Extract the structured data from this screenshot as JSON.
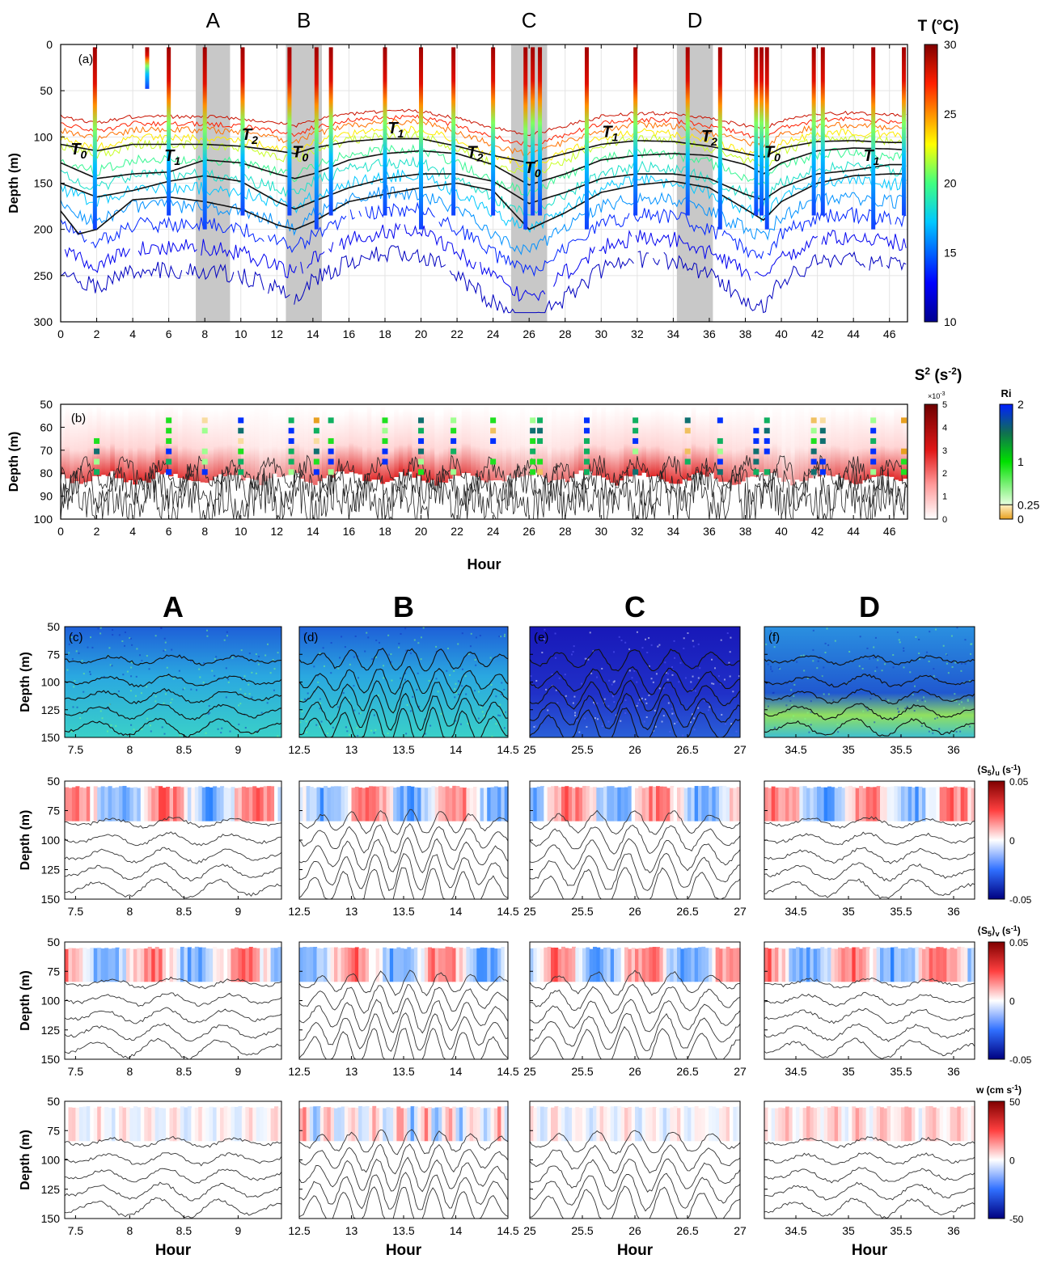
{
  "chart_data": [
    {
      "panel": "(a)",
      "type": "heatmap",
      "xlabel": "",
      "ylabel": "Depth (m)",
      "xlim": [
        0,
        47
      ],
      "ylim": [
        300,
        0
      ],
      "x_ticks": [
        "0",
        "2",
        "4",
        "6",
        "8",
        "10",
        "12",
        "14",
        "16",
        "18",
        "20",
        "22",
        "24",
        "26",
        "28",
        "30",
        "32",
        "34",
        "36",
        "38",
        "40",
        "42",
        "44",
        "46"
      ],
      "y_ticks": [
        "0",
        "50",
        "100",
        "150",
        "200",
        "250",
        "300"
      ],
      "colorbar": {
        "label": "T (°C)",
        "min": 10,
        "max": 30,
        "ticks": [
          "30",
          "25",
          "20",
          "15",
          "10"
        ],
        "colormap": "jet"
      },
      "shaded_windows": [
        {
          "label": "A",
          "x0": 7.5,
          "x1": 9.4
        },
        {
          "label": "B",
          "x0": 12.5,
          "x1": 14.5
        },
        {
          "label": "C",
          "x0": 25.0,
          "x1": 27.0
        },
        {
          "label": "D",
          "x0": 34.2,
          "x1": 36.2
        }
      ],
      "phase_labels": [
        {
          "text": "T",
          "sub": "0",
          "x": 1.0,
          "y": 119
        },
        {
          "text": "T",
          "sub": "1",
          "x": 6.2,
          "y": 126
        },
        {
          "text": "T",
          "sub": "2",
          "x": 10.5,
          "y": 103
        },
        {
          "text": "T",
          "sub": "0",
          "x": 13.3,
          "y": 122
        },
        {
          "text": "T",
          "sub": "1",
          "x": 18.6,
          "y": 96
        },
        {
          "text": "T",
          "sub": "2",
          "x": 23.0,
          "y": 122
        },
        {
          "text": "T",
          "sub": "0",
          "x": 26.2,
          "y": 139
        },
        {
          "text": "T",
          "sub": "1",
          "x": 30.5,
          "y": 100
        },
        {
          "text": "T",
          "sub": "2",
          "x": 36.0,
          "y": 105
        },
        {
          "text": "T",
          "sub": "0",
          "x": 39.5,
          "y": 122
        },
        {
          "text": "T",
          "sub": "1",
          "x": 45.0,
          "y": 126
        }
      ],
      "cast_times": [
        1.9,
        4.8,
        6.0,
        8.0,
        10.1,
        12.7,
        14.2,
        15.0,
        18.0,
        20.0,
        21.8,
        24.0,
        25.8,
        26.2,
        26.6,
        29.2,
        31.9,
        34.8,
        36.6,
        38.6,
        38.9,
        39.2,
        41.8,
        42.3,
        45.1,
        46.8
      ],
      "isotherms": [
        {
          "name": "",
          "depth_by_hour": [
            [
              0,
              128
            ],
            [
              2,
              145
            ],
            [
              4,
              140
            ],
            [
              6,
              138
            ],
            [
              8,
              125
            ],
            [
              10,
              128
            ],
            [
              12,
              140
            ],
            [
              13,
              145
            ],
            [
              14,
              140
            ],
            [
              16,
              125
            ],
            [
              18,
              118
            ],
            [
              20,
              115
            ],
            [
              22,
              118
            ],
            [
              24,
              130
            ],
            [
              26,
              152
            ],
            [
              28,
              140
            ],
            [
              30,
              125
            ],
            [
              32,
              120
            ],
            [
              34,
              118
            ],
            [
              36,
              120
            ],
            [
              38,
              130
            ],
            [
              39,
              140
            ],
            [
              40,
              128
            ],
            [
              42,
              115
            ],
            [
              44,
              112
            ],
            [
              46,
              113
            ],
            [
              47,
              114
            ]
          ]
        },
        {
          "name": "",
          "depth_by_hour": [
            [
              0,
              108
            ],
            [
              2,
              115
            ],
            [
              4,
              108
            ],
            [
              6,
              108
            ],
            [
              8,
              108
            ],
            [
              10,
              110
            ],
            [
              12,
              115
            ],
            [
              13,
              118
            ],
            [
              14,
              112
            ],
            [
              16,
              105
            ],
            [
              18,
              102
            ],
            [
              20,
              102
            ],
            [
              22,
              110
            ],
            [
              24,
              120
            ],
            [
              26,
              128
            ],
            [
              28,
              118
            ],
            [
              30,
              108
            ],
            [
              32,
              104
            ],
            [
              34,
              105
            ],
            [
              36,
              110
            ],
            [
              38,
              118
            ],
            [
              39,
              122
            ],
            [
              40,
              112
            ],
            [
              42,
              105
            ],
            [
              44,
              104
            ],
            [
              46,
              106
            ],
            [
              47,
              106
            ]
          ]
        },
        {
          "name": "",
          "depth_by_hour": [
            [
              0,
              150
            ],
            [
              2,
              165
            ],
            [
              4,
              158
            ],
            [
              6,
              148
            ],
            [
              8,
              142
            ],
            [
              10,
              148
            ],
            [
              12,
              170
            ],
            [
              13,
              178
            ],
            [
              14,
              170
            ],
            [
              16,
              155
            ],
            [
              18,
              145
            ],
            [
              20,
              140
            ],
            [
              22,
              140
            ],
            [
              24,
              148
            ],
            [
              26,
              172
            ],
            [
              28,
              160
            ],
            [
              30,
              145
            ],
            [
              32,
              140
            ],
            [
              34,
              140
            ],
            [
              36,
              145
            ],
            [
              38,
              162
            ],
            [
              39,
              168
            ],
            [
              40,
              155
            ],
            [
              42,
              140
            ],
            [
              44,
              136
            ],
            [
              46,
              130
            ],
            [
              47,
              130
            ]
          ]
        },
        {
          "name": "",
          "depth_by_hour": [
            [
              0,
              180
            ],
            [
              1,
              205
            ],
            [
              2,
              200
            ],
            [
              4,
              168
            ],
            [
              6,
              165
            ],
            [
              8,
              170
            ],
            [
              10,
              178
            ],
            [
              12,
              195
            ],
            [
              13,
              200
            ],
            [
              14,
              192
            ],
            [
              16,
              170
            ],
            [
              18,
              162
            ],
            [
              20,
              155
            ],
            [
              22,
              150
            ],
            [
              24,
              158
            ],
            [
              26,
              200
            ],
            [
              28,
              182
            ],
            [
              30,
              160
            ],
            [
              32,
              152
            ],
            [
              34,
              148
            ],
            [
              36,
              155
            ],
            [
              38,
              178
            ],
            [
              39,
              190
            ],
            [
              40,
              170
            ],
            [
              42,
              150
            ],
            [
              44,
              142
            ],
            [
              46,
              140
            ],
            [
              47,
              140
            ]
          ]
        }
      ]
    },
    {
      "panel": "(b)",
      "type": "heatmap",
      "xlabel": "Hour",
      "ylabel": "Depth (m)",
      "xlim": [
        0,
        47
      ],
      "ylim": [
        100,
        50
      ],
      "x_ticks": [
        "0",
        "2",
        "4",
        "6",
        "8",
        "10",
        "12",
        "14",
        "16",
        "18",
        "20",
        "22",
        "24",
        "26",
        "28",
        "30",
        "32",
        "34",
        "36",
        "38",
        "40",
        "42",
        "44",
        "46"
      ],
      "y_ticks": [
        "50",
        "60",
        "70",
        "80",
        "90",
        "100"
      ],
      "colorbar": {
        "label": "S",
        "label_sup": "2",
        "label_units": " (s",
        "label_units_sup": "-2",
        "label_close": ")",
        "scale_note": "×10",
        "scale_note_sup": "-3",
        "min": 0,
        "max": 5,
        "ticks": [
          "5",
          "4",
          "3",
          "2",
          "1",
          "0"
        ]
      },
      "ri_colorbar": {
        "label": "Ri",
        "ticks": [
          "2",
          "1",
          "0.25",
          "0"
        ]
      },
      "ri_cast_times": [
        2.0,
        6.0,
        8.0,
        10.0,
        12.8,
        14.2,
        15.0,
        18.0,
        20.0,
        21.8,
        24.0,
        26.2,
        26.6,
        29.2,
        31.9,
        34.8,
        36.6,
        38.6,
        39.2,
        41.8,
        42.3,
        45.1,
        46.8
      ]
    },
    {
      "row": "vertical-displacement",
      "type": "heatmap",
      "column_titles": [
        "A",
        "B",
        "C",
        "D"
      ],
      "panels": [
        {
          "label": "(c)",
          "xlim": [
            7.4,
            9.4
          ],
          "x_ticks": [
            "7.5",
            "8",
            "8.5",
            "9"
          ]
        },
        {
          "label": "(d)",
          "xlim": [
            12.5,
            14.5
          ],
          "x_ticks": [
            "12.5",
            "13",
            "13.5",
            "14",
            "14.5"
          ]
        },
        {
          "label": "(e)",
          "xlim": [
            25.0,
            27.0
          ],
          "x_ticks": [
            "25",
            "25.5",
            "26",
            "26.5",
            "27"
          ]
        },
        {
          "label": "(f)",
          "xlim": [
            34.2,
            36.2
          ],
          "x_ticks": [
            "34.5",
            "35",
            "35.5",
            "36"
          ]
        }
      ],
      "ylabel": "Depth (m)",
      "ylim": [
        150,
        50
      ],
      "y_ticks": [
        "50",
        "75",
        "100",
        "125",
        "150"
      ]
    },
    {
      "row": "S5u",
      "type": "heatmap",
      "ylabel": "Depth (m)",
      "ylim": [
        150,
        50
      ],
      "y_ticks": [
        "50",
        "75",
        "100",
        "125",
        "150"
      ],
      "colorbar": {
        "label": "⟨S",
        "label_sub": "5",
        "label_mid": "⟩",
        "label_sub2": "u",
        "label_units": " (s",
        "label_units_sup": "-1",
        "label_close": ")",
        "min": -0.05,
        "max": 0.05,
        "ticks": [
          "0.05",
          "0",
          "-0.05"
        ]
      }
    },
    {
      "row": "S5v",
      "type": "heatmap",
      "ylabel": "Depth (m)",
      "ylim": [
        150,
        50
      ],
      "y_ticks": [
        "50",
        "75",
        "100",
        "125",
        "150"
      ],
      "colorbar": {
        "label": "⟨S",
        "label_sub": "5",
        "label_mid": "⟩",
        "label_sub2": "v",
        "label_units": " (s",
        "label_units_sup": "-1",
        "label_close": ")",
        "min": -0.05,
        "max": 0.05,
        "ticks": [
          "0.05",
          "0",
          "-0.05"
        ]
      }
    },
    {
      "row": "w",
      "type": "heatmap",
      "xlabel": "Hour",
      "ylabel": "Depth (m)",
      "ylim": [
        150,
        50
      ],
      "y_ticks": [
        "50",
        "75",
        "100",
        "125",
        "150"
      ],
      "colorbar": {
        "label": "w (cm s",
        "label_units_sup": "-1",
        "label_close": ")",
        "min": -50,
        "max": 50,
        "ticks": [
          "50",
          "0",
          "-50"
        ]
      }
    }
  ]
}
